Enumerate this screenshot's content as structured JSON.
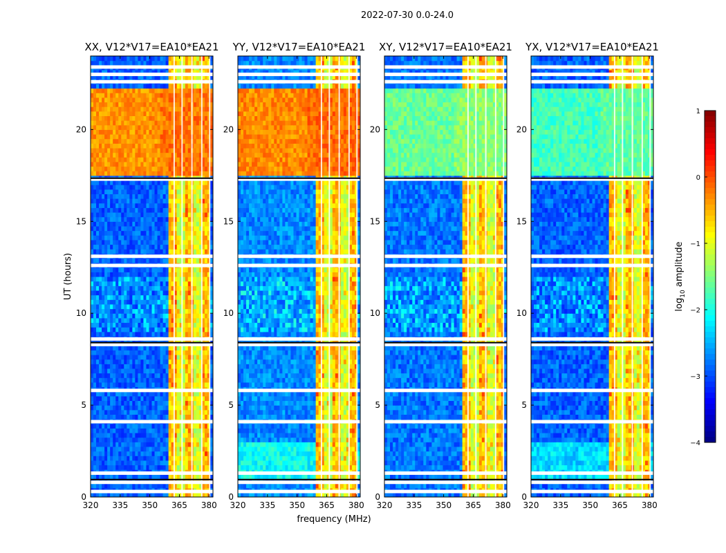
{
  "suptitle": "2022-07-30 0.0-24.0",
  "xlabel": "frequency (MHz)",
  "ylabel": "UT (hours)",
  "colorbar": {
    "label_main": "log",
    "label_sub": "10",
    "label_tail": " amplitude",
    "ticks": [
      "1",
      "0",
      "−1",
      "−2",
      "−3",
      "−4"
    ],
    "tick_values": [
      1,
      0,
      -1,
      -2,
      -3,
      -4
    ],
    "range": [
      -4,
      1
    ],
    "colormap": "jet"
  },
  "chart_data": {
    "type": "heatmap",
    "xlim": [
      320,
      382
    ],
    "ylim": [
      0,
      24
    ],
    "xticks": [
      320,
      335,
      350,
      365,
      380
    ],
    "yticks": [
      0,
      5,
      10,
      15,
      20
    ],
    "xtick_labels": [
      "320",
      "335",
      "350",
      "365",
      "380"
    ],
    "ytick_labels": [
      "0",
      "5",
      "10",
      "15",
      "20"
    ],
    "bright_band_mhz": [
      360,
      380
    ],
    "high_amplitude_hours": [
      17.5,
      22.3
    ],
    "flagged_hours": [
      0.3,
      0.8,
      1.3,
      4.1,
      5.8,
      8.3,
      8.6,
      12.6,
      13.1,
      17.3,
      22.6,
      23.0,
      23.4
    ],
    "panels": [
      {
        "title": "XX, V12*V17=EA10*EA21",
        "pol": "XX",
        "bg_level": -2.9,
        "day_level": -0.35
      },
      {
        "title": "YY, V12*V17=EA10*EA21",
        "pol": "YY",
        "bg_level": -2.7,
        "day_level": -0.3
      },
      {
        "title": "XY, V12*V17=EA10*EA21",
        "pol": "XY",
        "bg_level": -2.8,
        "day_level": -1.6
      },
      {
        "title": "YX, V12*V17=EA10*EA21",
        "pol": "YX",
        "bg_level": -2.9,
        "day_level": -1.8
      }
    ]
  }
}
